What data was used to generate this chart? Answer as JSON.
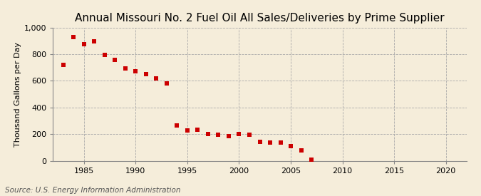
{
  "title": "Annual Missouri No. 2 Fuel Oil All Sales/Deliveries by Prime Supplier",
  "ylabel": "Thousand Gallons per Day",
  "source": "Source: U.S. Energy Information Administration",
  "background_color": "#f5edda",
  "plot_background_color": "#f5edda",
  "marker_color": "#cc0000",
  "years": [
    1983,
    1984,
    1985,
    1986,
    1987,
    1988,
    1989,
    1990,
    1991,
    1992,
    1993,
    1994,
    1995,
    1996,
    1997,
    1998,
    1999,
    2000,
    2001,
    2002,
    2003,
    2004,
    2005,
    2006,
    2007
  ],
  "values": [
    720,
    930,
    875,
    895,
    795,
    755,
    695,
    670,
    650,
    620,
    580,
    265,
    225,
    235,
    200,
    195,
    185,
    200,
    195,
    140,
    135,
    135,
    110,
    75,
    10
  ],
  "xlim": [
    1982,
    2022
  ],
  "ylim": [
    0,
    1000
  ],
  "xticks": [
    1985,
    1990,
    1995,
    2000,
    2005,
    2010,
    2015,
    2020
  ],
  "yticks": [
    0,
    200,
    400,
    600,
    800,
    1000
  ],
  "ytick_labels": [
    "0",
    "200",
    "400",
    "600",
    "800",
    "1,000"
  ],
  "grid_color": "#aaaaaa",
  "grid_linestyle": "--",
  "grid_linewidth": 0.6,
  "title_fontsize": 11,
  "axis_fontsize": 8,
  "source_fontsize": 7.5
}
